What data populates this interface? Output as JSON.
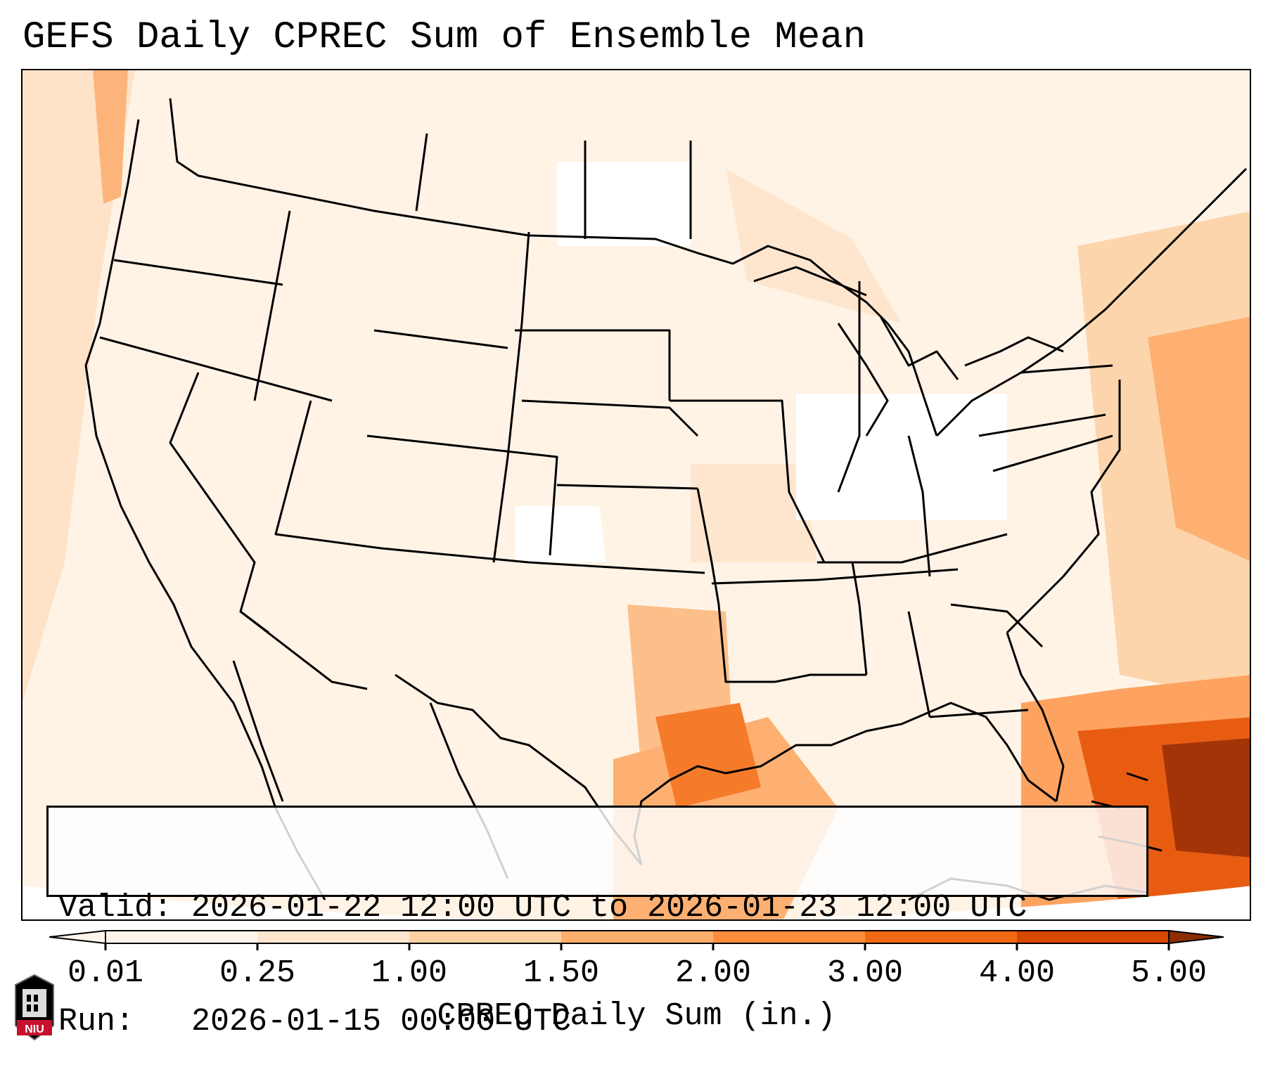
{
  "title": "GEFS Daily CPREC Sum of Ensemble Mean",
  "info": {
    "valid_label": "Valid:",
    "valid_value": "2026-01-22 12:00 UTC to 2026-01-23 12:00 UTC",
    "run_label": "Run:  ",
    "run_value": "2026-01-15 00:00 UTC"
  },
  "colorbar": {
    "label": "CPREC Daily Sum (in.)",
    "ticks": [
      "0.01",
      "0.25",
      "1.00",
      "1.50",
      "2.00",
      "3.00",
      "4.00",
      "5.00"
    ],
    "colors": [
      "#fff5eb",
      "#fee6ce",
      "#fdd0a2",
      "#fdae6b",
      "#fd8d3c",
      "#f16913",
      "#d94801",
      "#8c2d04"
    ]
  },
  "logo": {
    "text": "NIU",
    "color": "#c8102e"
  }
}
